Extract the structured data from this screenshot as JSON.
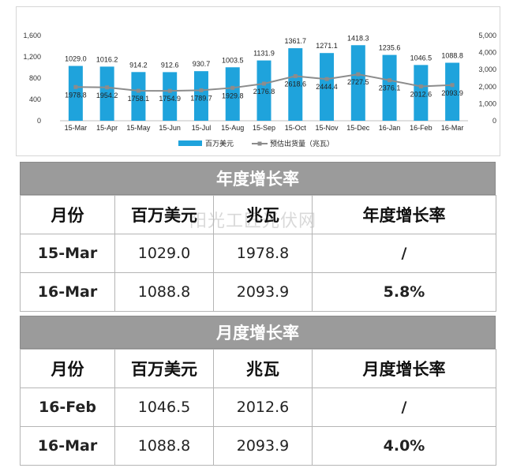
{
  "chart_data": {
    "type": "bar",
    "categories": [
      "15-Mar",
      "15-Apr",
      "15-May",
      "15-Jun",
      "15-Jul",
      "15-Aug",
      "15-Sep",
      "15-Oct",
      "15-Nov",
      "15-Dec",
      "16-Jan",
      "16-Feb",
      "16-Mar"
    ],
    "series": [
      {
        "name": "百万美元",
        "type": "bar",
        "axis": "left",
        "values": [
          1029.0,
          1016.2,
          914.2,
          912.6,
          930.7,
          1003.5,
          1131.9,
          1361.7,
          1271.1,
          1418.3,
          1235.6,
          1046.5,
          1088.8
        ],
        "color": "#1fa3dc"
      },
      {
        "name": "预估出货量（兆瓦）",
        "type": "line",
        "axis": "right",
        "values": [
          1978.8,
          1954.2,
          1758.1,
          1754.9,
          1789.7,
          1929.8,
          2176.8,
          2618.6,
          2444.4,
          2727.5,
          2376.1,
          2012.6,
          2093.9
        ],
        "color": "#8c8c8c"
      }
    ],
    "ylim_left": [
      0,
      1600
    ],
    "yticks_left": [
      "0",
      "400",
      "800",
      "1,200",
      "1,600"
    ],
    "ylim_right": [
      0,
      5000
    ],
    "yticks_right": [
      "0",
      "1,000",
      "2,000",
      "3,000",
      "4,000",
      "5,000"
    ],
    "value_labels": {
      "bar": [
        "1029.0",
        "1016.2",
        "914.2",
        "912.6",
        "930.7",
        "1003.5",
        "1131.9",
        "1361.7",
        "1271.1",
        "1418.3",
        "1235.6",
        "1046.5",
        "1088.8"
      ],
      "line": [
        "1978.8",
        "1954.2",
        "1758.1",
        "1754.9",
        "1789.7",
        "1929.8",
        "2176.8",
        "2618.6",
        "2444.4",
        "2727.5",
        "2376.1",
        "2012.6",
        "2093.9"
      ]
    },
    "legend_position": "bottom",
    "grid": false
  },
  "watermark": "阳光工匠光伏网",
  "yearly": {
    "title": "年度增长率",
    "headers": [
      "月份",
      "百万美元",
      "兆瓦",
      "年度增长率"
    ],
    "rows": [
      [
        "15-Mar",
        "1029.0",
        "1978.8",
        "/"
      ],
      [
        "16-Mar",
        "1088.8",
        "2093.9",
        "5.8%"
      ]
    ]
  },
  "monthly": {
    "title": "月度增长率",
    "headers": [
      "月份",
      "百万美元",
      "兆瓦",
      "月度增长率"
    ],
    "rows": [
      [
        "16-Feb",
        "1046.5",
        "2012.6",
        "/"
      ],
      [
        "16-Mar",
        "1088.8",
        "2093.9",
        "4.0%"
      ]
    ]
  }
}
